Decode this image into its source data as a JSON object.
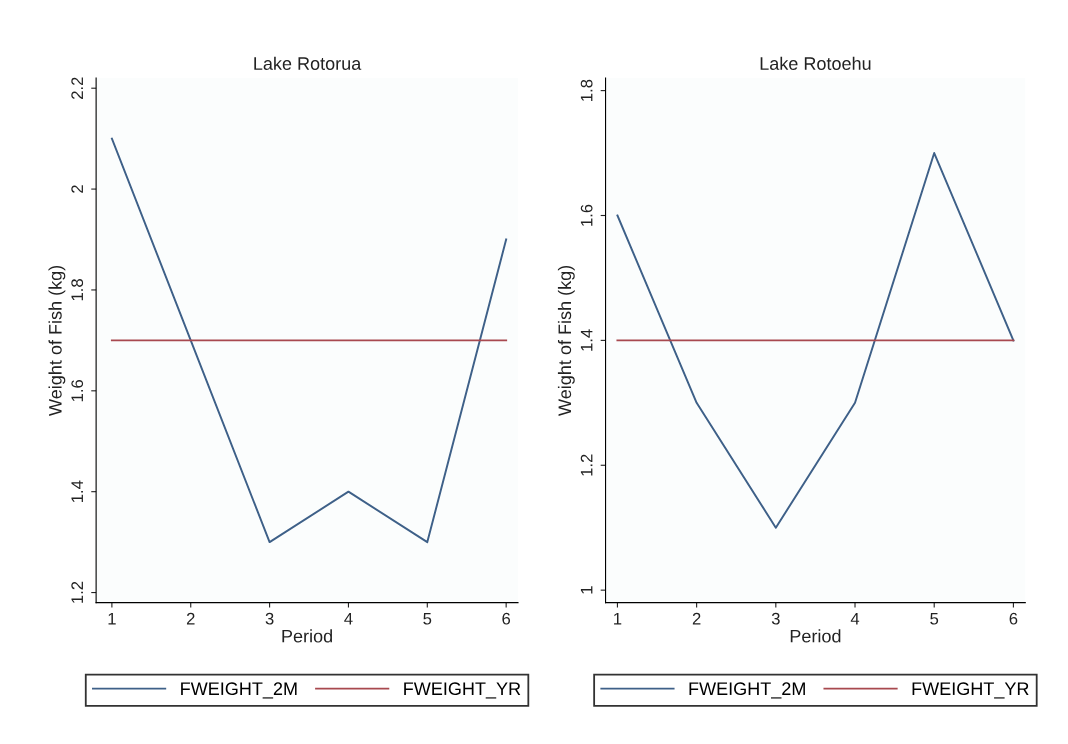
{
  "chart_data": [
    {
      "type": "line",
      "title": "Lake Rotorua",
      "xlabel": "Period",
      "ylabel": "Weight of Fish (kg)",
      "x": [
        1,
        2,
        3,
        4,
        5,
        6
      ],
      "xlim": [
        0.8,
        6.15
      ],
      "xticks": [
        1,
        2,
        3,
        4,
        5,
        6
      ],
      "ylim": [
        1.18,
        2.22
      ],
      "yticks": [
        1.2,
        1.4,
        1.6,
        1.8,
        2,
        2.2
      ],
      "grid": false,
      "legend": "bottom",
      "line_style": "solid",
      "marker": "none",
      "series": [
        {
          "name": "FWEIGHT_2M",
          "color": "#3e6088",
          "values": [
            2.1,
            1.7,
            1.3,
            1.4,
            1.3,
            1.9
          ]
        },
        {
          "name": "FWEIGHT_YR",
          "color": "#a8494f",
          "values": [
            1.7,
            1.7,
            1.7,
            1.7,
            1.7,
            1.7
          ]
        }
      ]
    },
    {
      "type": "line",
      "title": "Lake Rotoehu",
      "xlabel": "Period",
      "ylabel": "Weight of Fish (kg)",
      "x": [
        1,
        2,
        3,
        4,
        5,
        6
      ],
      "xlim": [
        0.85,
        6.15
      ],
      "xticks": [
        1,
        2,
        3,
        4,
        5,
        6
      ],
      "ylim": [
        0.98,
        1.82
      ],
      "yticks": [
        1,
        1.2,
        1.4,
        1.6,
        1.8
      ],
      "grid": false,
      "legend": "bottom",
      "line_style": "solid",
      "marker": "none",
      "series": [
        {
          "name": "FWEIGHT_2M",
          "color": "#3e6088",
          "values": [
            1.6,
            1.3,
            1.1,
            1.3,
            1.7,
            1.4
          ]
        },
        {
          "name": "FWEIGHT_YR",
          "color": "#a8494f",
          "values": [
            1.4,
            1.4,
            1.4,
            1.4,
            1.4,
            1.4
          ]
        }
      ]
    }
  ]
}
